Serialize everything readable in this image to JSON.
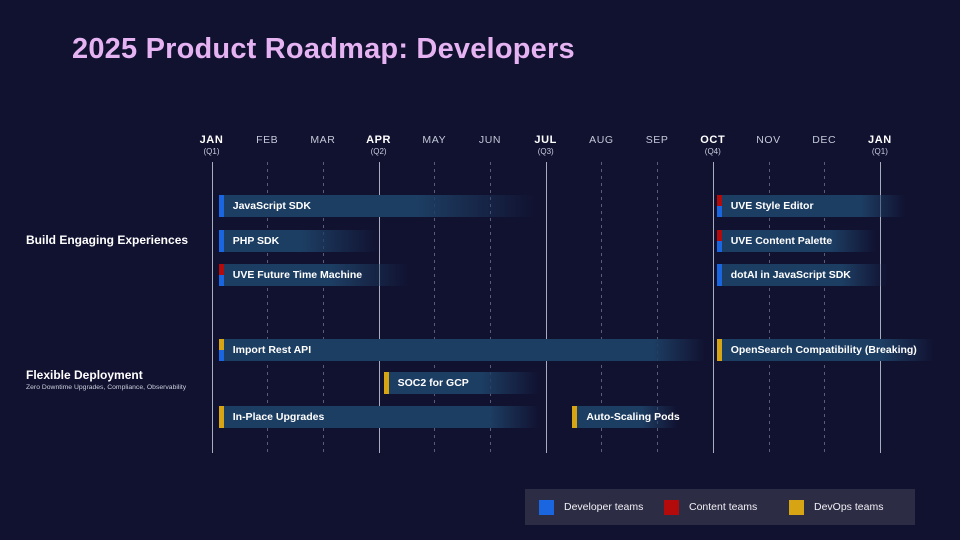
{
  "header": {
    "title": "2025 Product Roadmap: Developers"
  },
  "colors": {
    "background": "#111130",
    "title": "#e5b3f2",
    "bar_fill": "#1d3e63",
    "teams": {
      "developer": "#1a66e0",
      "content": "#b30b0b",
      "devops": "#d7a414"
    },
    "legend_panel": "#2d2c45",
    "grid_quarter": "rgba(205,212,228,0.8)",
    "grid_month": "rgba(160,168,190,0.5)"
  },
  "chart_data": {
    "type": "gantt",
    "title": "2025 Product Roadmap: Developers",
    "axis": {
      "unit": "month",
      "range_note": "JAN 2025 through JAN 2026, quarter months bold with solid gridlines, other months dashed gridlines"
    },
    "months": [
      {
        "label": "JAN",
        "sub": "(Q1)",
        "quarter": true
      },
      {
        "label": "FEB"
      },
      {
        "label": "MAR"
      },
      {
        "label": "APR",
        "sub": "(Q2)",
        "quarter": true
      },
      {
        "label": "MAY"
      },
      {
        "label": "JUN"
      },
      {
        "label": "JUL",
        "sub": "(Q3)",
        "quarter": true
      },
      {
        "label": "AUG"
      },
      {
        "label": "SEP"
      },
      {
        "label": "OCT",
        "sub": "(Q4)",
        "quarter": true
      },
      {
        "label": "NOV"
      },
      {
        "label": "DEC"
      },
      {
        "label": "JAN",
        "sub": "(Q1)",
        "quarter": true
      }
    ],
    "groups": [
      {
        "label": "Build Engaging Experiences",
        "sublabel": ""
      },
      {
        "label": "Flexible Deployment",
        "sublabel": "Zero Downtime Upgrades, Compliance, Observability"
      }
    ],
    "bars": [
      {
        "label": "JavaScript SDK",
        "group": 0,
        "row": 0,
        "start_month": 0.13,
        "end_month": 5.85,
        "fade": 0.62,
        "teams": [
          "developer"
        ]
      },
      {
        "label": "PHP SDK",
        "group": 0,
        "row": 1,
        "start_month": 0.13,
        "end_month": 3.03,
        "fade": 0.51,
        "teams": [
          "developer"
        ]
      },
      {
        "label": "UVE Future Time Machine",
        "group": 0,
        "row": 2,
        "start_month": 0.13,
        "end_month": 3.57,
        "fade": 0.58,
        "teams": [
          "content",
          "developer"
        ]
      },
      {
        "label": "UVE Style Editor",
        "group": 0,
        "row": 0,
        "start_month": 9.07,
        "end_month": 12.46,
        "fade": 0.76,
        "teams": [
          "content",
          "developer"
        ]
      },
      {
        "label": "UVE Content Palette",
        "group": 0,
        "row": 1,
        "start_month": 9.07,
        "end_month": 11.94,
        "fade": 0.71,
        "teams": [
          "content",
          "developer"
        ]
      },
      {
        "label": "dotAI in JavaScript SDK",
        "group": 0,
        "row": 2,
        "start_month": 9.07,
        "end_month": 12.14,
        "fade": 0.73,
        "teams": [
          "developer"
        ]
      },
      {
        "label": "Import Rest API",
        "group": 1,
        "row": 3,
        "start_month": 0.13,
        "end_month": 8.87,
        "fade": 0.89,
        "teams": [
          "devops",
          "developer"
        ]
      },
      {
        "label": "SOC2 for GCP",
        "group": 1,
        "row": 4,
        "start_month": 3.09,
        "end_month": 5.9,
        "fade": 0.62,
        "teams": [
          "devops"
        ]
      },
      {
        "label": "In-Place Upgrades",
        "group": 1,
        "row": 5,
        "start_month": 0.13,
        "end_month": 5.9,
        "fade": 0.84,
        "teams": [
          "devops"
        ]
      },
      {
        "label": "Auto-Scaling Pods",
        "group": 1,
        "row": 5,
        "start_month": 6.48,
        "end_month": 8.37,
        "fade": 0.65,
        "teams": [
          "devops"
        ]
      },
      {
        "label": "OpenSearch Compatibility (Breaking)",
        "group": 1,
        "row": 3,
        "start_month": 9.07,
        "end_month": 12.99,
        "fade": 0.75,
        "teams": [
          "devops"
        ]
      }
    ],
    "legend": [
      {
        "team": "developer",
        "label": "Developer teams"
      },
      {
        "team": "content",
        "label": "Content teams"
      },
      {
        "team": "devops",
        "label": "DevOps teams"
      }
    ],
    "legend_position": "bottom-right",
    "grid": true
  }
}
